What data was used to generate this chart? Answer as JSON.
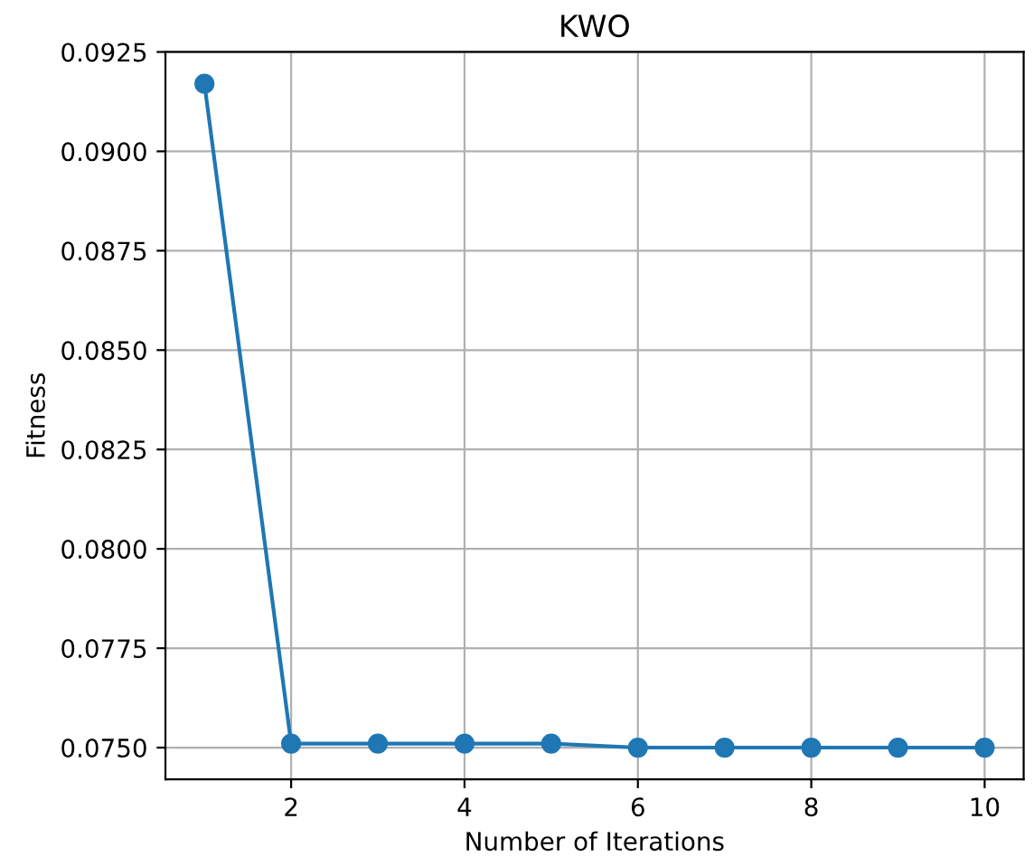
{
  "chart_data": {
    "type": "line",
    "title": "KWO",
    "xlabel": "Number of Iterations",
    "ylabel": "Fitness",
    "x": [
      1,
      2,
      3,
      4,
      5,
      6,
      7,
      8,
      9,
      10
    ],
    "series": [
      {
        "color": "#1f77b4",
        "values": [
          0.0917,
          0.0751,
          0.0751,
          0.0751,
          0.0751,
          0.075,
          0.075,
          0.075,
          0.075,
          0.075
        ]
      }
    ],
    "xlim": [
      0.55,
      10.45
    ],
    "xticks": [
      2,
      4,
      6,
      8,
      10
    ],
    "ylim": [
      0.0742,
      0.0925
    ],
    "yticks": [
      {
        "value": 0.075,
        "label": "0.0750"
      },
      {
        "value": 0.0775,
        "label": "0.0775"
      },
      {
        "value": 0.08,
        "label": "0.0800"
      },
      {
        "value": 0.0825,
        "label": "0.0825"
      },
      {
        "value": 0.085,
        "label": "0.0850"
      },
      {
        "value": 0.0875,
        "label": "0.0875"
      },
      {
        "value": 0.09,
        "label": "0.0900"
      },
      {
        "value": 0.0925,
        "label": "0.0925"
      }
    ],
    "grid": true,
    "marker": "circle",
    "line_style": "solid"
  }
}
